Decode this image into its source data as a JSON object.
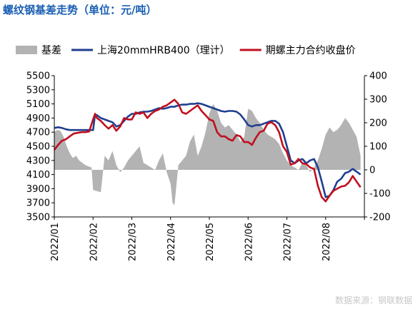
{
  "chart_data": {
    "type": "line",
    "title": "螺纹钢基差走势（单位：元/吨）",
    "x_tick_labels": [
      "2022/01",
      "2022/02",
      "2022/03",
      "2022/04",
      "2022/05",
      "2022/06",
      "2022/07",
      "2022/08"
    ],
    "left_axis": {
      "ylim": [
        3500,
        5500
      ],
      "ticks": [
        3500,
        3700,
        3900,
        4100,
        4300,
        4500,
        4700,
        4900,
        5100,
        5300,
        5500
      ]
    },
    "right_axis": {
      "ylim": [
        -200,
        400
      ],
      "ticks": [
        -200,
        -100,
        0,
        100,
        200,
        300,
        400
      ]
    },
    "grid": false,
    "legend_position": "top",
    "series": [
      {
        "name": "基差",
        "style": "area",
        "axis": "right",
        "color": "#b3b3b3",
        "x": [
          0.0,
          0.08,
          0.16,
          0.24,
          0.32,
          0.4,
          0.48,
          0.56,
          0.64,
          0.72,
          0.8,
          0.88,
          0.96,
          1.0,
          1.1,
          1.2,
          1.3,
          1.4,
          1.5,
          1.6,
          1.7,
          1.8,
          1.9,
          2.0,
          2.1,
          2.2,
          2.3,
          2.4,
          2.5,
          2.6,
          2.7,
          2.8,
          2.9,
          3.0,
          3.05,
          3.1,
          3.2,
          3.3,
          3.4,
          3.5,
          3.6,
          3.7,
          3.8,
          3.9,
          4.0,
          4.1,
          4.2,
          4.3,
          4.4,
          4.5,
          4.6,
          4.7,
          4.8,
          4.9,
          5.0,
          5.1,
          5.2,
          5.3,
          5.4,
          5.5,
          5.6,
          5.7,
          5.8,
          5.9,
          6.0,
          6.1,
          6.2,
          6.3,
          6.4,
          6.5,
          6.6,
          6.7,
          6.8,
          6.9,
          7.0,
          7.1,
          7.2,
          7.3,
          7.4,
          7.5,
          7.6,
          7.7,
          7.8,
          7.9
        ],
        "values": [
          160,
          170,
          165,
          140,
          100,
          70,
          50,
          60,
          40,
          30,
          20,
          15,
          10,
          -85,
          -90,
          -95,
          60,
          40,
          80,
          20,
          -10,
          10,
          40,
          60,
          80,
          100,
          30,
          20,
          10,
          0,
          40,
          70,
          -10,
          -60,
          -140,
          -150,
          20,
          40,
          60,
          120,
          150,
          60,
          100,
          160,
          240,
          280,
          250,
          200,
          180,
          190,
          170,
          150,
          120,
          140,
          260,
          250,
          220,
          200,
          170,
          150,
          140,
          130,
          110,
          70,
          40,
          20,
          10,
          0,
          30,
          20,
          -10,
          10,
          40,
          90,
          150,
          180,
          160,
          170,
          190,
          220,
          200,
          170,
          140,
          60
        ]
      },
      {
        "name": "上海20mmHRB400（理计）",
        "style": "line",
        "axis": "left",
        "color": "#1f3f8f",
        "x": [
          0.0,
          0.1,
          0.2,
          0.3,
          0.4,
          0.5,
          0.6,
          0.7,
          0.8,
          0.9,
          1.0,
          1.05,
          1.1,
          1.2,
          1.3,
          1.4,
          1.5,
          1.6,
          1.7,
          1.8,
          1.9,
          2.0,
          2.1,
          2.2,
          2.3,
          2.4,
          2.5,
          2.6,
          2.7,
          2.8,
          2.9,
          3.0,
          3.1,
          3.2,
          3.3,
          3.4,
          3.5,
          3.6,
          3.7,
          3.8,
          3.9,
          4.0,
          4.1,
          4.2,
          4.3,
          4.4,
          4.5,
          4.6,
          4.7,
          4.8,
          4.9,
          5.0,
          5.1,
          5.2,
          5.3,
          5.4,
          5.5,
          5.6,
          5.7,
          5.8,
          5.9,
          6.0,
          6.1,
          6.2,
          6.3,
          6.4,
          6.5,
          6.6,
          6.7,
          6.8,
          6.9,
          7.0,
          7.1,
          7.2,
          7.3,
          7.4,
          7.5,
          7.6,
          7.7,
          7.8,
          7.9
        ],
        "values": [
          4760,
          4770,
          4760,
          4740,
          4730,
          4730,
          4730,
          4730,
          4730,
          4730,
          4730,
          4950,
          4940,
          4900,
          4880,
          4860,
          4840,
          4780,
          4800,
          4860,
          4920,
          4960,
          4960,
          4980,
          4990,
          4990,
          5000,
          5020,
          5040,
          5030,
          5040,
          5060,
          5060,
          5080,
          5090,
          5090,
          5100,
          5100,
          5110,
          5100,
          5080,
          5060,
          5040,
          5020,
          5000,
          4990,
          5000,
          5000,
          4990,
          4950,
          4880,
          4800,
          4780,
          4800,
          4800,
          4820,
          4840,
          4860,
          4860,
          4820,
          4700,
          4500,
          4300,
          4260,
          4300,
          4320,
          4260,
          4300,
          4320,
          4200,
          4000,
          3780,
          3800,
          3880,
          4000,
          4040,
          4120,
          4140,
          4180,
          4140,
          4100
        ]
      },
      {
        "name": "期螺主力合约收盘价",
        "style": "line",
        "axis": "left",
        "color": "#c0101f",
        "x": [
          0.0,
          0.1,
          0.2,
          0.3,
          0.4,
          0.5,
          0.6,
          0.7,
          0.8,
          0.9,
          1.0,
          1.05,
          1.1,
          1.2,
          1.3,
          1.4,
          1.5,
          1.6,
          1.7,
          1.8,
          1.9,
          2.0,
          2.1,
          2.2,
          2.3,
          2.4,
          2.5,
          2.6,
          2.7,
          2.8,
          2.9,
          3.0,
          3.1,
          3.2,
          3.3,
          3.4,
          3.5,
          3.6,
          3.7,
          3.8,
          3.9,
          4.0,
          4.1,
          4.2,
          4.3,
          4.4,
          4.5,
          4.6,
          4.7,
          4.8,
          4.9,
          5.0,
          5.1,
          5.2,
          5.3,
          5.4,
          5.5,
          5.6,
          5.7,
          5.8,
          5.9,
          6.0,
          6.1,
          6.2,
          6.3,
          6.4,
          6.5,
          6.6,
          6.7,
          6.8,
          6.9,
          7.0,
          7.1,
          7.2,
          7.3,
          7.4,
          7.5,
          7.6,
          7.7,
          7.8,
          7.9
        ],
        "values": [
          4450,
          4520,
          4580,
          4600,
          4640,
          4680,
          4690,
          4700,
          4700,
          4710,
          4880,
          4960,
          4900,
          4860,
          4800,
          4750,
          4800,
          4720,
          4780,
          4900,
          4880,
          4880,
          4980,
          4960,
          4980,
          4900,
          4960,
          5000,
          5020,
          5060,
          5080,
          5120,
          5160,
          5100,
          4980,
          4960,
          5000,
          5040,
          5080,
          5000,
          4940,
          4880,
          4860,
          4700,
          4640,
          4640,
          4600,
          4580,
          4660,
          4640,
          4560,
          4560,
          4520,
          4620,
          4700,
          4720,
          4820,
          4840,
          4800,
          4700,
          4500,
          4420,
          4240,
          4260,
          4320,
          4260,
          4250,
          4200,
          4180,
          3940,
          3780,
          3720,
          3800,
          3870,
          3900,
          3930,
          3940,
          3990,
          4080,
          4000,
          3920
        ]
      }
    ]
  },
  "source_note": "数据来源：钢联数据"
}
